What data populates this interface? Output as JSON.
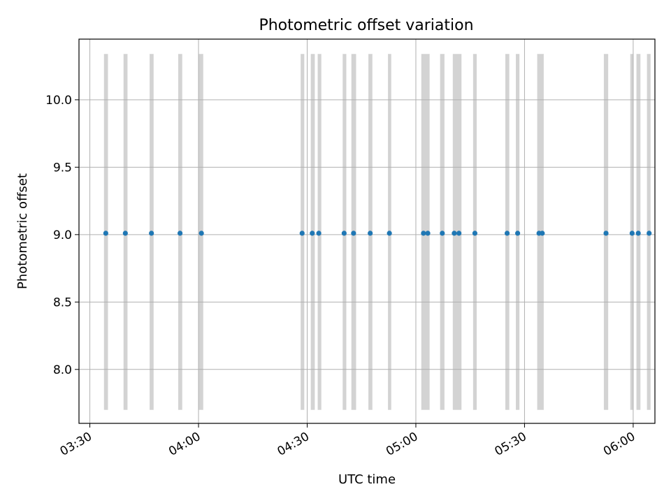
{
  "chart_data": {
    "type": "scatter",
    "title": "Photometric offset variation",
    "xlabel": "UTC time",
    "ylabel": "Photometric offset",
    "x_ticks": [
      "03:30",
      "04:00",
      "04:30",
      "05:00",
      "05:30",
      "06:00"
    ],
    "x_tick_minutes": [
      210,
      240,
      270,
      300,
      330,
      360
    ],
    "xlim_minutes": [
      207,
      366
    ],
    "y_ticks": [
      "8.0",
      "8.5",
      "9.0",
      "9.5",
      "10.0"
    ],
    "y_tick_values": [
      8.0,
      8.5,
      9.0,
      9.5,
      10.0
    ],
    "ylim": [
      7.6,
      10.45
    ],
    "grid": true,
    "band_range": [
      7.7,
      10.34
    ],
    "series": [
      {
        "name": "offset",
        "color": "#1f77b4",
        "x_minutes": [
          214.4,
          219.8,
          227.0,
          234.9,
          240.8,
          268.6,
          271.4,
          273.2,
          280.2,
          282.8,
          287.4,
          292.7,
          302.1,
          303.3,
          307.3,
          310.6,
          311.9,
          316.3,
          325.2,
          328.1,
          334.0,
          334.9,
          352.5,
          359.7,
          361.4,
          364.4
        ],
        "y": [
          9.01,
          9.01,
          9.01,
          9.01,
          9.01,
          9.01,
          9.01,
          9.01,
          9.01,
          9.01,
          9.01,
          9.01,
          9.01,
          9.01,
          9.01,
          9.01,
          9.01,
          9.01,
          9.01,
          9.01,
          9.01,
          9.01,
          9.01,
          9.01,
          9.01,
          9.01
        ]
      }
    ],
    "bands": [
      {
        "start": 213.9,
        "end": 215.0
      },
      {
        "start": 219.3,
        "end": 220.4
      },
      {
        "start": 226.5,
        "end": 227.6
      },
      {
        "start": 234.4,
        "end": 235.5
      },
      {
        "start": 240.1,
        "end": 241.3
      },
      {
        "start": 268.2,
        "end": 269.2
      },
      {
        "start": 271.0,
        "end": 272.1
      },
      {
        "start": 272.9,
        "end": 273.9
      },
      {
        "start": 279.8,
        "end": 280.8
      },
      {
        "start": 282.2,
        "end": 283.5
      },
      {
        "start": 286.9,
        "end": 288.0
      },
      {
        "start": 292.3,
        "end": 293.2
      },
      {
        "start": 301.5,
        "end": 303.8
      },
      {
        "start": 306.7,
        "end": 307.9
      },
      {
        "start": 310.2,
        "end": 312.6
      },
      {
        "start": 315.8,
        "end": 316.8
      },
      {
        "start": 324.7,
        "end": 325.8
      },
      {
        "start": 327.6,
        "end": 328.6
      },
      {
        "start": 333.5,
        "end": 335.3
      },
      {
        "start": 351.9,
        "end": 353.1
      },
      {
        "start": 359.2,
        "end": 360.1
      },
      {
        "start": 360.9,
        "end": 362.0
      },
      {
        "start": 363.8,
        "end": 364.8
      }
    ]
  }
}
